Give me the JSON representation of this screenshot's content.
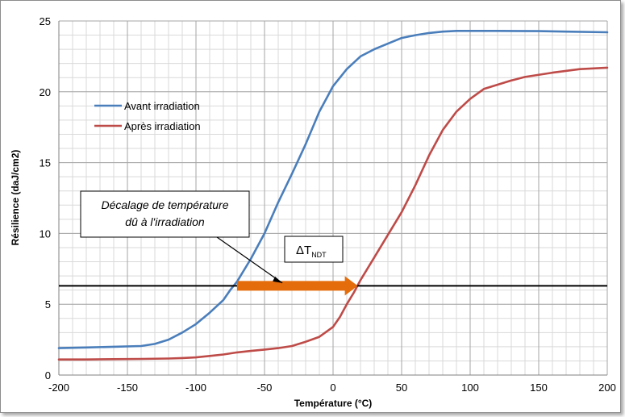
{
  "chart_data": {
    "type": "line",
    "xlabel": "Température (°C)",
    "ylabel": "Résilience (daJ/cm2)",
    "xlim": [
      -200,
      200
    ],
    "ylim": [
      0,
      25
    ],
    "x_ticks": [
      -200,
      -150,
      -100,
      -50,
      0,
      50,
      100,
      150,
      200
    ],
    "y_ticks": [
      0,
      5,
      10,
      15,
      20,
      25
    ],
    "grid": true,
    "legend_position": "top-left",
    "series": [
      {
        "name": "Avant irradiation",
        "color": "#4a7ebb",
        "x": [
          -200,
          -180,
          -160,
          -140,
          -130,
          -120,
          -110,
          -100,
          -90,
          -80,
          -75,
          -70,
          -60,
          -50,
          -40,
          -30,
          -20,
          -10,
          -5,
          0,
          10,
          20,
          30,
          40,
          50,
          60,
          70,
          80,
          90,
          100,
          110,
          120,
          150,
          170,
          200
        ],
        "y": [
          1.9,
          1.95,
          2.0,
          2.05,
          2.2,
          2.5,
          3.0,
          3.6,
          4.4,
          5.3,
          6.0,
          6.6,
          8.2,
          10.0,
          12.2,
          14.2,
          16.3,
          18.6,
          19.5,
          20.4,
          21.6,
          22.5,
          23.0,
          23.4,
          23.8,
          24.0,
          24.15,
          24.25,
          24.3,
          24.3,
          24.3,
          24.3,
          24.28,
          24.25,
          24.2
        ]
      },
      {
        "name": "Après irradiation",
        "color": "#be4b48",
        "x": [
          -200,
          -180,
          -160,
          -140,
          -120,
          -110,
          -100,
          -90,
          -80,
          -70,
          -60,
          -50,
          -40,
          -30,
          -20,
          -10,
          0,
          5,
          10,
          15,
          20,
          30,
          40,
          50,
          60,
          70,
          80,
          90,
          100,
          110,
          120,
          130,
          140,
          160,
          180,
          200
        ],
        "y": [
          1.1,
          1.1,
          1.12,
          1.14,
          1.17,
          1.2,
          1.25,
          1.35,
          1.45,
          1.6,
          1.7,
          1.8,
          1.9,
          2.05,
          2.35,
          2.7,
          3.4,
          4.1,
          5.0,
          5.8,
          6.7,
          8.3,
          9.9,
          11.5,
          13.4,
          15.5,
          17.3,
          18.6,
          19.5,
          20.2,
          20.5,
          20.8,
          21.05,
          21.35,
          21.6,
          21.7
        ]
      }
    ],
    "reference_line": {
      "y": 6.3,
      "color": "#000000"
    },
    "shift_arrow": {
      "from_x": -70,
      "to_x": 18,
      "y": 6.3,
      "color": "#e46c0a",
      "label_main": "ΔT",
      "label_sub": "NDT"
    },
    "annotation": {
      "line1": "Décalage de température",
      "line2": "dû à l'irradiation",
      "pointer_x": -37,
      "pointer_y": 6.5
    }
  }
}
